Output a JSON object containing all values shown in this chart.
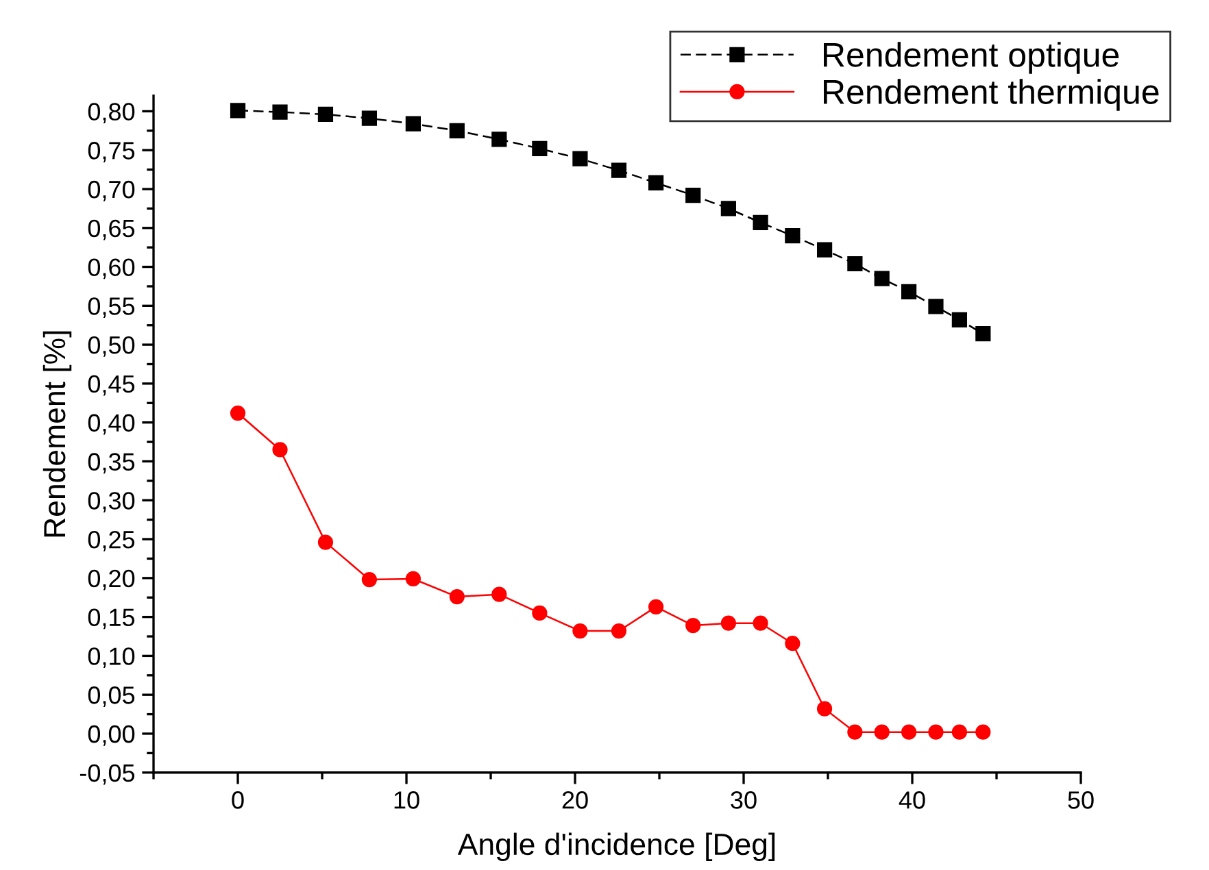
{
  "chart_data": {
    "type": "line",
    "xlabel": "Angle d'incidence [Deg]",
    "ylabel": "Rendement [%]",
    "xlim": [
      -5,
      50
    ],
    "xticks": [
      0,
      10,
      20,
      30,
      40,
      50
    ],
    "ylim": [
      -0.05,
      0.82
    ],
    "yticks": [
      {
        "value": -0.05,
        "label": "-0,05"
      },
      {
        "value": 0,
        "label": "0,00"
      },
      {
        "value": 0.05,
        "label": "0,05"
      },
      {
        "value": 0.1,
        "label": "0,10"
      },
      {
        "value": 0.15,
        "label": "0,15"
      },
      {
        "value": 0.2,
        "label": "0,20"
      },
      {
        "value": 0.25,
        "label": "0,25"
      },
      {
        "value": 0.3,
        "label": "0,30"
      },
      {
        "value": 0.35,
        "label": "0,35"
      },
      {
        "value": 0.4,
        "label": "0,40"
      },
      {
        "value": 0.45,
        "label": "0,45"
      },
      {
        "value": 0.5,
        "label": "0,50"
      },
      {
        "value": 0.55,
        "label": "0,55"
      },
      {
        "value": 0.6,
        "label": "0,60"
      },
      {
        "value": 0.65,
        "label": "0,65"
      },
      {
        "value": 0.7,
        "label": "0,70"
      },
      {
        "value": 0.75,
        "label": "0,75"
      },
      {
        "value": 0.8,
        "label": "0,80"
      }
    ],
    "x": [
      0,
      2.5,
      5.2,
      7.8,
      10.4,
      13,
      15.5,
      17.9,
      20.3,
      22.6,
      24.8,
      27,
      29.1,
      31,
      32.9,
      34.8,
      36.6,
      38.2,
      39.8,
      41.4,
      42.8,
      44.2
    ],
    "grid": false,
    "legend": "top right",
    "series": [
      {
        "name": "Rendement optique",
        "color": "#000000",
        "marker": "square",
        "line_style": "dashed",
        "values": [
          0.801,
          0.799,
          0.796,
          0.791,
          0.784,
          0.775,
          0.764,
          0.752,
          0.739,
          0.724,
          0.708,
          0.692,
          0.675,
          0.657,
          0.64,
          0.622,
          0.604,
          0.585,
          0.568,
          0.549,
          0.532,
          0.514
        ]
      },
      {
        "name": "Rendement thermique",
        "color": "#ff0000",
        "marker": "circle",
        "line_style": "solid",
        "values": [
          0.412,
          0.365,
          0.246,
          0.198,
          0.199,
          0.176,
          0.179,
          0.155,
          0.132,
          0.132,
          0.163,
          0.139,
          0.142,
          0.142,
          0.116,
          0.032,
          0.002,
          0.002,
          0.002,
          0.002,
          0.002,
          0.002
        ]
      }
    ]
  }
}
